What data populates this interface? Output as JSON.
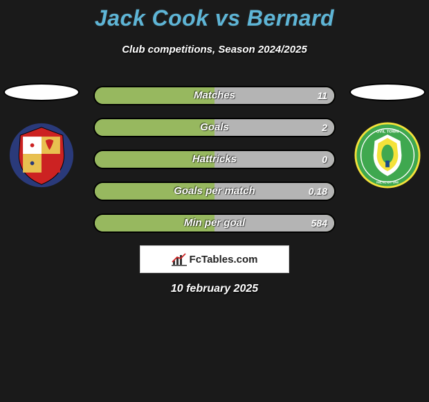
{
  "title": "Jack Cook vs Bernard",
  "subtitle": "Club competitions, Season 2024/2025",
  "date": "10 february 2025",
  "brand": "FcTables.com",
  "colors": {
    "title": "#5eb5d6",
    "bar_left": "#97b85f",
    "bar_right": "#b4b4b4",
    "bg": "#1a1a1a"
  },
  "stats": [
    {
      "label": "Matches",
      "right_value": "11",
      "right_pct": 50
    },
    {
      "label": "Goals",
      "right_value": "2",
      "right_pct": 50
    },
    {
      "label": "Hattricks",
      "right_value": "0",
      "right_pct": 50
    },
    {
      "label": "Goals per match",
      "right_value": "0.18",
      "right_pct": 50
    },
    {
      "label": "Min per goal",
      "right_value": "584",
      "right_pct": 50
    }
  ],
  "crests": {
    "left": {
      "name": "left-club-crest",
      "colors": [
        "#2a3a7a",
        "#cc2222",
        "#e8c050",
        "#ffffff"
      ]
    },
    "right": {
      "name": "right-club-crest",
      "colors": [
        "#3fa84f",
        "#f4e23a",
        "#ffffff",
        "#1a4a8a"
      ]
    }
  }
}
